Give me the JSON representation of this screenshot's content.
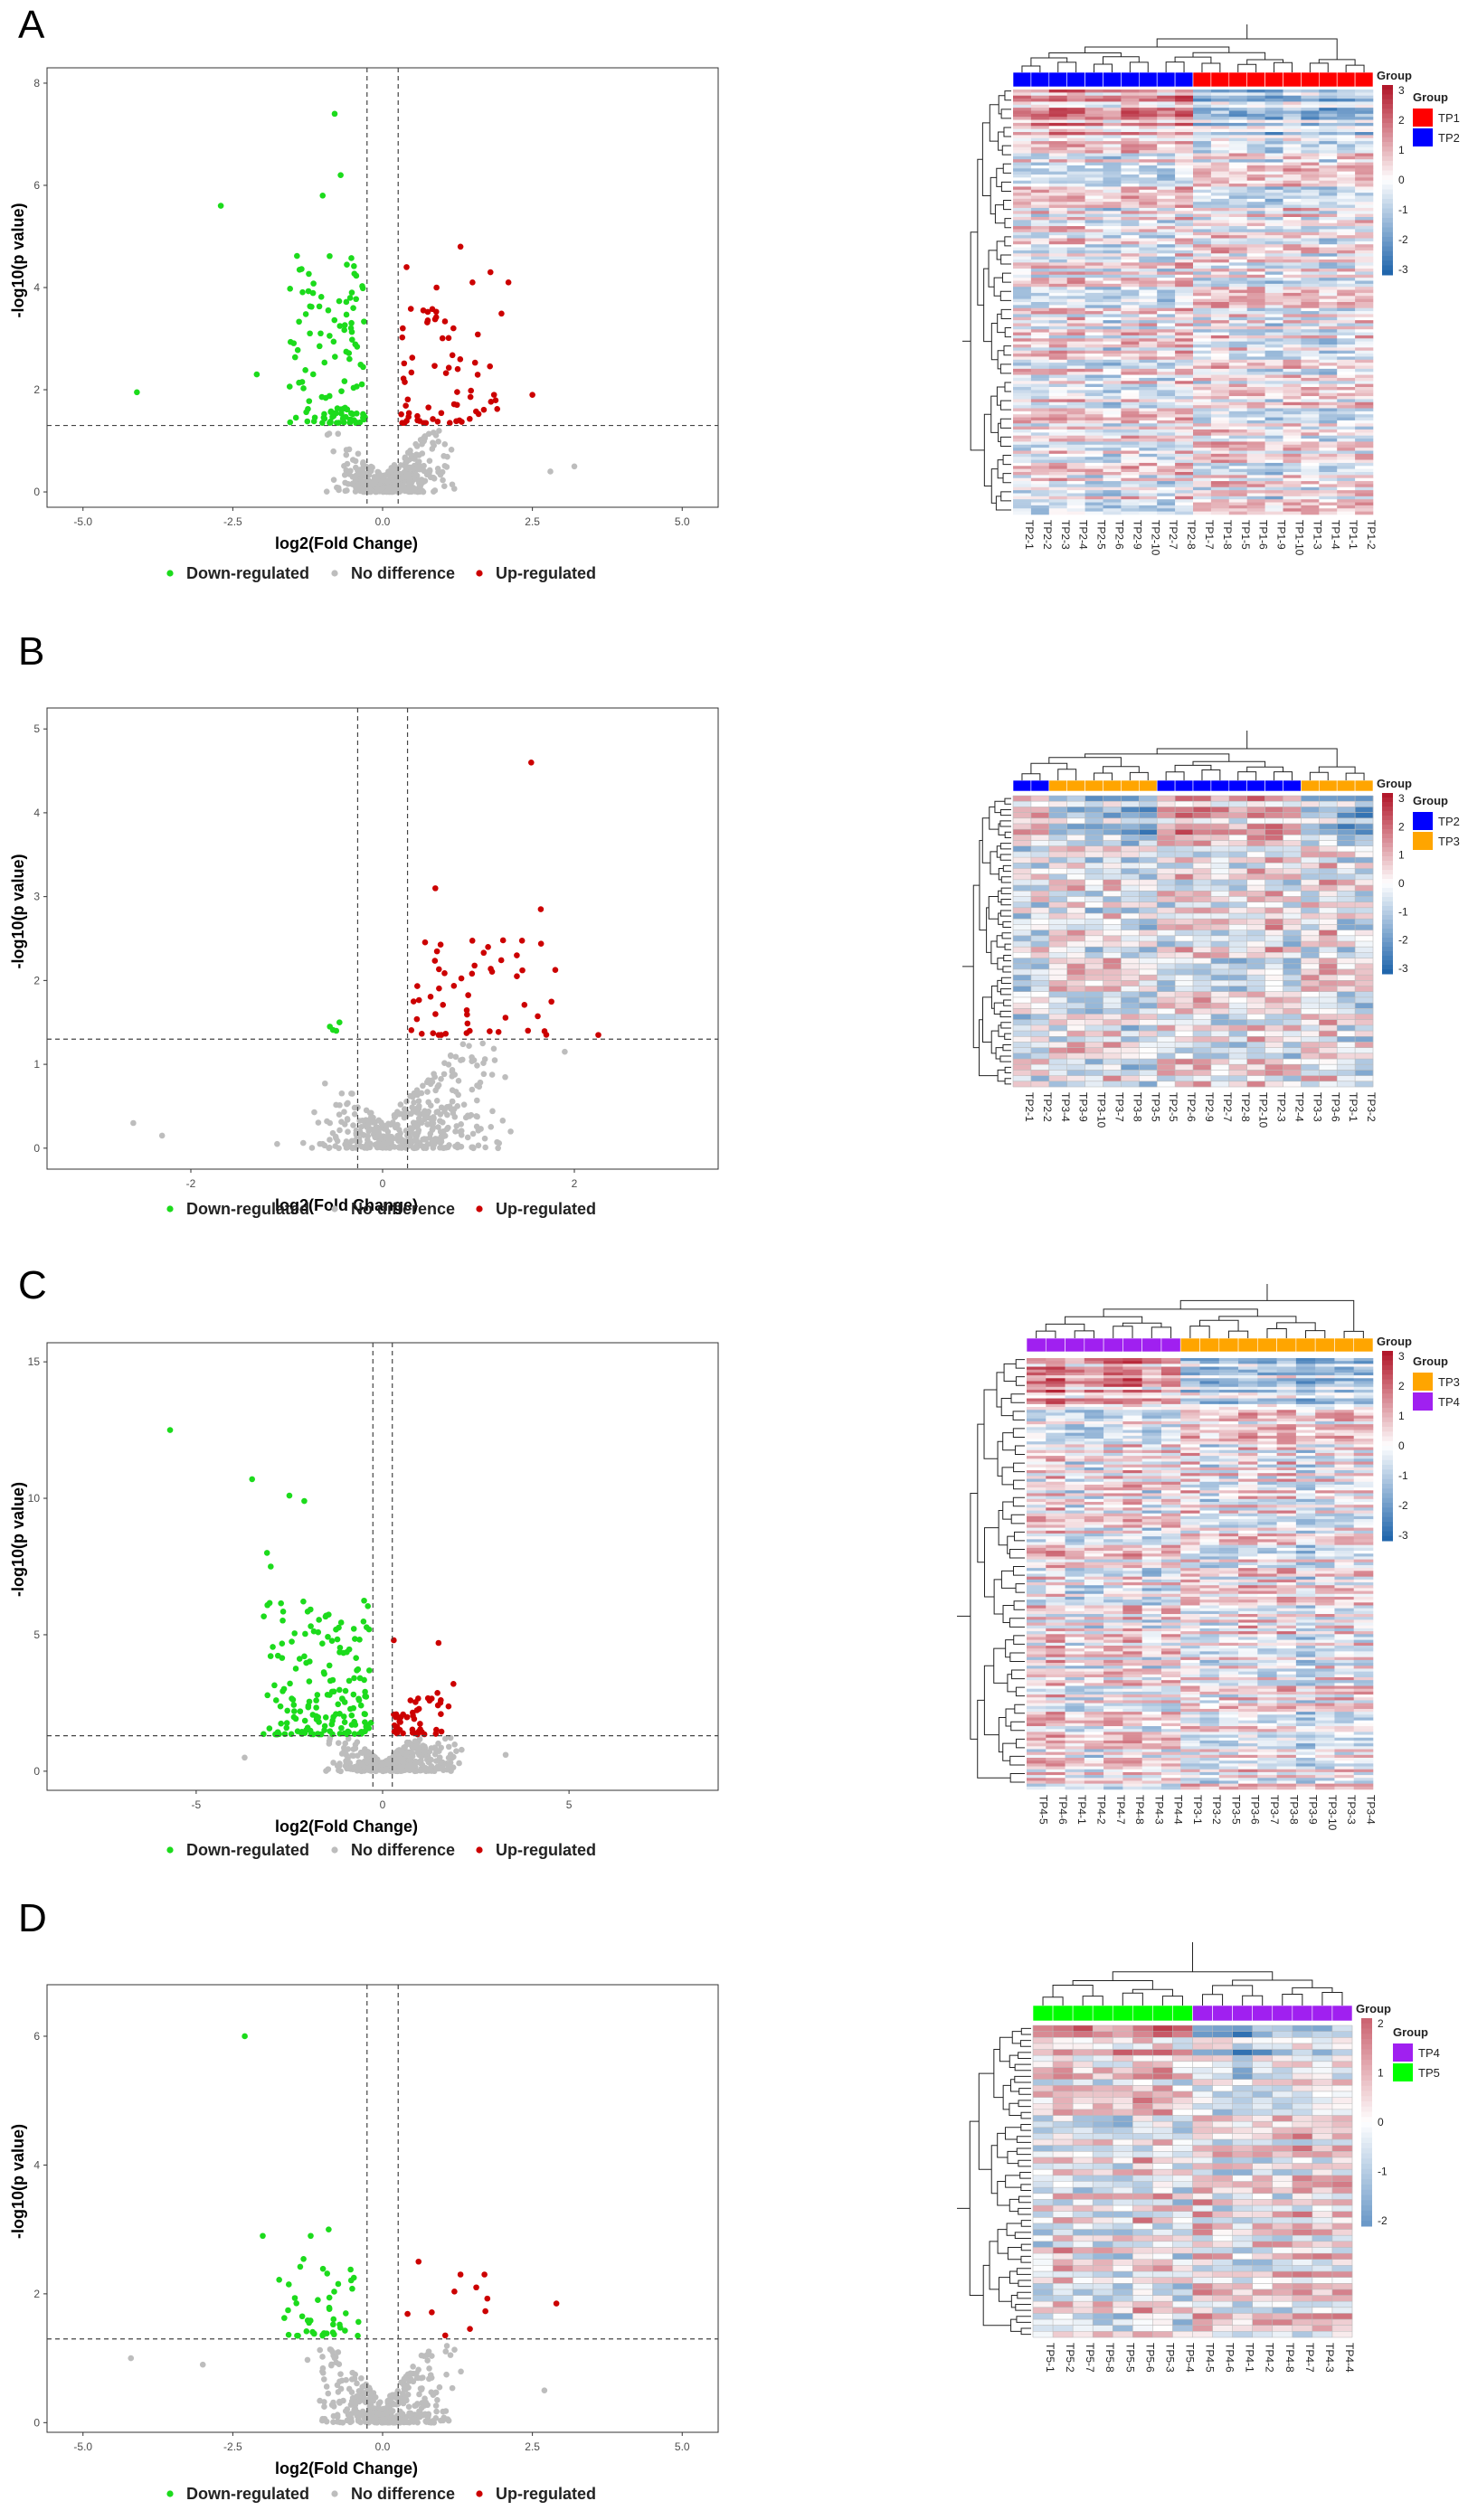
{
  "colors": {
    "down": "#1cdb1c",
    "none": "#bdbdbd",
    "up": "#cc0000",
    "TP1": "#ff0000",
    "TP2": "#0000ff",
    "TP3": "#ffa500",
    "TP4": "#a020f0",
    "TP5": "#00ff00",
    "heat_low": "#2166ac",
    "heat_mid": "#ffffff",
    "heat_high": "#b2182b"
  },
  "legend": {
    "down": "Down-regulated",
    "none": "No difference",
    "up": "Up-regulated"
  },
  "chart_data": [
    {
      "panel": "A",
      "type": "scatter",
      "xlabel": "log2(Fold Change)",
      "ylabel": "-log10(p value)",
      "xlim": [
        -5.6,
        5.6
      ],
      "ylim": [
        -0.3,
        8.3
      ],
      "xticks": [
        -5.0,
        -2.5,
        0.0,
        2.5,
        5.0
      ],
      "xtick_labels": [
        "-5.0",
        "-2.5",
        "0.0",
        "2.5",
        "5.0"
      ],
      "yticks": [
        0,
        2,
        4,
        6,
        8
      ],
      "ytick_labels": [
        "0",
        "2",
        "4",
        "6",
        "8"
      ],
      "vlines": [
        -0.26,
        0.26
      ],
      "hline": 1.3,
      "outliers": [
        [
          -4.1,
          1.95
        ],
        [
          -2.7,
          5.6
        ],
        [
          -0.8,
          7.4
        ],
        [
          -0.7,
          6.2
        ],
        [
          -1.0,
          5.8
        ],
        [
          -2.1,
          2.3
        ],
        [
          1.3,
          4.8
        ],
        [
          1.8,
          4.3
        ],
        [
          2.1,
          4.1
        ],
        [
          0.4,
          4.4
        ],
        [
          1.5,
          4.1
        ],
        [
          2.5,
          1.9
        ],
        [
          3.2,
          0.5
        ],
        [
          2.8,
          0.4
        ],
        [
          0.9,
          4.0
        ]
      ],
      "counts": {
        "down": 120,
        "up": 65,
        "none": 400
      },
      "spread": {
        "down_x": [
          -1.6,
          -0.28
        ],
        "down_y": [
          1.35,
          4.7
        ],
        "up_x": [
          0.3,
          2.0
        ],
        "up_y": [
          1.35,
          3.9
        ],
        "none_x": [
          -1.1,
          1.4
        ],
        "none_y": [
          0.0,
          1.25
        ]
      },
      "heatmap": {
        "groups": [
          "TP1",
          "TP2"
        ],
        "col_labels": [
          "TP2-1",
          "TP2-2",
          "TP2-3",
          "TP2-4",
          "TP2-5",
          "TP2-6",
          "TP2-9",
          "TP2-10",
          "TP2-7",
          "TP2-8",
          "TP1-7",
          "TP1-8",
          "TP1-5",
          "TP1-6",
          "TP1-9",
          "TP1-10",
          "TP1-3",
          "TP1-4",
          "TP1-1",
          "TP1-2"
        ],
        "col_groups": [
          "TP2",
          "TP2",
          "TP2",
          "TP2",
          "TP2",
          "TP2",
          "TP2",
          "TP2",
          "TP2",
          "TP2",
          "TP1",
          "TP1",
          "TP1",
          "TP1",
          "TP1",
          "TP1",
          "TP1",
          "TP1",
          "TP1",
          "TP1"
        ],
        "rows": 140,
        "scale_ticks": [
          3,
          2,
          1,
          0,
          -1,
          -2,
          -3
        ],
        "group_title": "Group"
      }
    },
    {
      "panel": "B",
      "type": "scatter",
      "xlabel": "log2(Fold Change)",
      "ylabel": "-log10(p value)",
      "xlim": [
        -3.5,
        3.5
      ],
      "ylim": [
        -0.25,
        5.25
      ],
      "xticks": [
        -2,
        0,
        2
      ],
      "xtick_labels": [
        "-2",
        "0",
        "2"
      ],
      "yticks": [
        0,
        1,
        2,
        3,
        4,
        5
      ],
      "ytick_labels": [
        "0",
        "1",
        "2",
        "3",
        "4",
        "5"
      ],
      "vlines": [
        -0.26,
        0.26
      ],
      "hline": 1.3,
      "outliers": [
        [
          1.55,
          4.6
        ],
        [
          0.55,
          3.1
        ],
        [
          1.65,
          2.85
        ],
        [
          2.25,
          1.35
        ],
        [
          -0.55,
          1.45
        ],
        [
          -0.45,
          1.5
        ],
        [
          -2.6,
          0.3
        ],
        [
          -2.3,
          0.15
        ],
        [
          -1.1,
          0.05
        ],
        [
          1.9,
          1.15
        ],
        [
          1.1,
          2.4
        ],
        [
          1.4,
          2.3
        ]
      ],
      "counts": {
        "down": 2,
        "up": 50,
        "none": 420
      },
      "spread": {
        "down_x": [
          -0.6,
          -0.4
        ],
        "down_y": [
          1.4,
          1.5
        ],
        "up_x": [
          0.3,
          1.85
        ],
        "up_y": [
          1.35,
          2.5
        ],
        "none_x": [
          -1.0,
          1.6
        ],
        "none_y": [
          0.0,
          1.25
        ]
      },
      "heatmap": {
        "groups": [
          "TP2",
          "TP3"
        ],
        "col_labels": [
          "TP2-1",
          "TP2-2",
          "TP3-4",
          "TP3-9",
          "TP3-10",
          "TP3-7",
          "TP3-8",
          "TP3-5",
          "TP2-5",
          "TP2-6",
          "TP2-9",
          "TP2-7",
          "TP2-8",
          "TP2-10",
          "TP2-3",
          "TP2-4",
          "TP3-3",
          "TP3-6",
          "TP3-1",
          "TP3-2"
        ],
        "col_groups": [
          "TP2",
          "TP2",
          "TP3",
          "TP3",
          "TP3",
          "TP3",
          "TP3",
          "TP3",
          "TP2",
          "TP2",
          "TP2",
          "TP2",
          "TP2",
          "TP2",
          "TP2",
          "TP2",
          "TP3",
          "TP3",
          "TP3",
          "TP3"
        ],
        "rows": 52,
        "scale_ticks": [
          3,
          2,
          1,
          0,
          -1,
          -2,
          -3
        ],
        "group_title": "Group"
      }
    },
    {
      "panel": "C",
      "type": "scatter",
      "xlabel": "log2(Fold Change)",
      "ylabel": "-log10(p value)",
      "xlim": [
        -9.0,
        9.0
      ],
      "ylim": [
        -0.7,
        15.7
      ],
      "xticks": [
        -5,
        0,
        5
      ],
      "xtick_labels": [
        "-5",
        "0",
        "5"
      ],
      "yticks": [
        0,
        5,
        10,
        15
      ],
      "ytick_labels": [
        "0",
        "5",
        "10",
        "15"
      ],
      "vlines": [
        -0.26,
        0.26
      ],
      "hline": 1.3,
      "outliers": [
        [
          -5.7,
          12.5
        ],
        [
          -3.5,
          10.7
        ],
        [
          -2.5,
          10.1
        ],
        [
          -2.1,
          9.9
        ],
        [
          -3.1,
          8.0
        ],
        [
          -3.0,
          7.5
        ],
        [
          1.9,
          3.2
        ],
        [
          0.3,
          4.8
        ],
        [
          1.5,
          4.7
        ],
        [
          3.3,
          0.6
        ],
        [
          -3.7,
          0.5
        ]
      ],
      "counts": {
        "down": 170,
        "up": 45,
        "none": 380
      },
      "spread": {
        "down_x": [
          -3.2,
          -0.3
        ],
        "down_y": [
          1.35,
          6.3
        ],
        "up_x": [
          0.3,
          1.8
        ],
        "up_y": [
          1.35,
          3.0
        ],
        "none_x": [
          -2.0,
          2.6
        ],
        "none_y": [
          0.0,
          1.25
        ]
      },
      "heatmap": {
        "groups": [
          "TP3",
          "TP4"
        ],
        "col_labels": [
          "TP4-5",
          "TP4-6",
          "TP4-1",
          "TP4-2",
          "TP4-7",
          "TP4-8",
          "TP4-3",
          "TP4-4",
          "TP3-1",
          "TP3-2",
          "TP3-5",
          "TP3-6",
          "TP3-7",
          "TP3-8",
          "TP3-9",
          "TP3-10",
          "TP3-3",
          "TP3-4"
        ],
        "col_groups": [
          "TP4",
          "TP4",
          "TP4",
          "TP4",
          "TP4",
          "TP4",
          "TP4",
          "TP4",
          "TP3",
          "TP3",
          "TP3",
          "TP3",
          "TP3",
          "TP3",
          "TP3",
          "TP3",
          "TP3",
          "TP3"
        ],
        "rows": 150,
        "scale_ticks": [
          3,
          2,
          1,
          0,
          -1,
          -2,
          -3
        ],
        "group_title": "Group"
      }
    },
    {
      "panel": "D",
      "type": "scatter",
      "xlabel": "log2(Fold Change)",
      "ylabel": "-log10(p value)",
      "xlim": [
        -5.6,
        5.6
      ],
      "ylim": [
        -0.15,
        6.8
      ],
      "xticks": [
        -5.0,
        -2.5,
        0.0,
        2.5,
        5.0
      ],
      "xtick_labels": [
        "-5.0",
        "-2.5",
        "0.0",
        "2.5",
        "5.0"
      ],
      "yticks": [
        0,
        2,
        4,
        6
      ],
      "ytick_labels": [
        "0",
        "2",
        "4",
        "6"
      ],
      "vlines": [
        -0.26,
        0.26
      ],
      "hline": 1.3,
      "outliers": [
        [
          -2.3,
          6.0
        ],
        [
          -1.2,
          2.9
        ],
        [
          -0.9,
          3.0
        ],
        [
          -2.0,
          2.9
        ],
        [
          2.9,
          1.85
        ],
        [
          1.3,
          2.3
        ],
        [
          1.7,
          2.3
        ],
        [
          0.6,
          2.5
        ],
        [
          -4.2,
          1.0
        ],
        [
          2.7,
          0.5
        ],
        [
          -3.0,
          0.9
        ]
      ],
      "counts": {
        "down": 45,
        "up": 8,
        "none": 380
      },
      "spread": {
        "down_x": [
          -1.9,
          -0.3
        ],
        "down_y": [
          1.35,
          2.6
        ],
        "up_x": [
          0.4,
          1.8
        ],
        "up_y": [
          1.35,
          2.3
        ],
        "none_x": [
          -1.6,
          1.6
        ],
        "none_y": [
          0.0,
          1.25
        ]
      },
      "heatmap": {
        "groups": [
          "TP4",
          "TP5"
        ],
        "col_labels": [
          "TP5-1",
          "TP5-2",
          "TP5-7",
          "TP5-8",
          "TP5-5",
          "TP5-6",
          "TP5-3",
          "TP5-4",
          "TP4-5",
          "TP4-6",
          "TP4-1",
          "TP4-2",
          "TP4-8",
          "TP4-7",
          "TP4-3",
          "TP4-4"
        ],
        "col_groups": [
          "TP5",
          "TP5",
          "TP5",
          "TP5",
          "TP5",
          "TP5",
          "TP5",
          "TP5",
          "TP4",
          "TP4",
          "TP4",
          "TP4",
          "TP4",
          "TP4",
          "TP4",
          "TP4"
        ],
        "rows": 52,
        "scale_ticks": [
          2,
          1,
          0,
          -1,
          -2
        ],
        "group_title": "Group"
      }
    }
  ]
}
